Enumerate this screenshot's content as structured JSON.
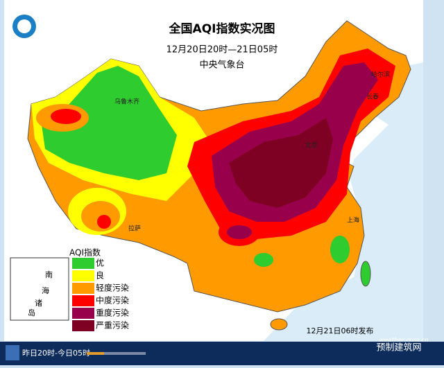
{
  "header": {
    "title": "全国AQI指数实况图",
    "subtitle": "12月20日20时—21日05时",
    "source": "中央气象台"
  },
  "legend": {
    "title": "AQI指数",
    "items": [
      {
        "label": "优",
        "color": "#2ecc2e"
      },
      {
        "label": "良",
        "color": "#ffff00"
      },
      {
        "label": "轻度污染",
        "color": "#ff9a00"
      },
      {
        "label": "中度污染",
        "color": "#ff0000"
      },
      {
        "label": "重度污染",
        "color": "#99004c"
      },
      {
        "label": "严重污染",
        "color": "#7e0023"
      }
    ]
  },
  "cities": [
    "乌鲁木齐",
    "拉萨",
    "北京",
    "哈尔滨",
    "长春",
    "上海"
  ],
  "inset": {
    "labels": [
      "南",
      "海",
      "诸",
      "岛"
    ]
  },
  "release": "12月21日06时发布",
  "watermark": "weather.com.cn",
  "footer": {
    "time": "昨日20时-今日05时",
    "brand": "预制建筑网"
  }
}
